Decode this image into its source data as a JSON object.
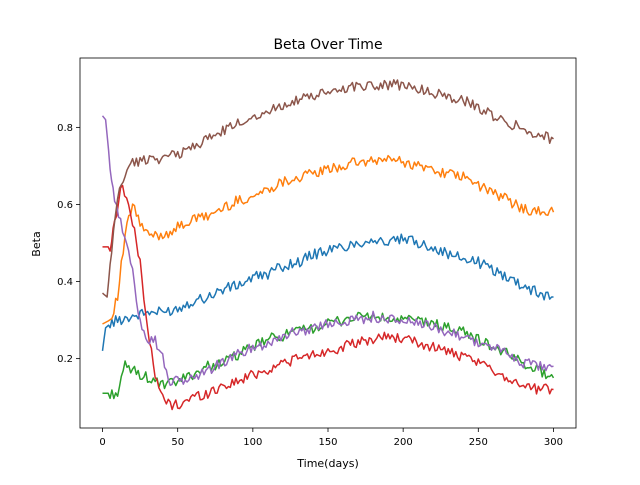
{
  "chart_data": {
    "type": "line",
    "title": "Beta Over Time",
    "xlabel": "Time(days)",
    "ylabel": "Beta",
    "xlim": [
      -15,
      315
    ],
    "ylim": [
      0.02,
      0.98
    ],
    "xticks": [
      0,
      50,
      100,
      150,
      200,
      250,
      300
    ],
    "yticks": [
      0.2,
      0.4,
      0.6,
      0.8
    ],
    "ytick_labels": [
      "0.2",
      "0.4",
      "0.6",
      "0.8"
    ],
    "grid": false,
    "legend": "none",
    "series": [
      {
        "color": "#1f77b4",
        "x": [
          0,
          2,
          5,
          10,
          20,
          30,
          40,
          50,
          60,
          70,
          80,
          90,
          100,
          110,
          120,
          130,
          140,
          150,
          160,
          170,
          180,
          190,
          200,
          210,
          220,
          230,
          240,
          250,
          260,
          270,
          280,
          290,
          300
        ],
        "y": [
          0.22,
          0.28,
          0.29,
          0.3,
          0.31,
          0.32,
          0.32,
          0.33,
          0.35,
          0.36,
          0.38,
          0.39,
          0.41,
          0.42,
          0.44,
          0.45,
          0.47,
          0.48,
          0.49,
          0.5,
          0.51,
          0.5,
          0.51,
          0.5,
          0.49,
          0.47,
          0.46,
          0.45,
          0.43,
          0.41,
          0.39,
          0.37,
          0.36
        ]
      },
      {
        "color": "#ff7f0e",
        "x": [
          0,
          5,
          10,
          15,
          20,
          25,
          30,
          40,
          50,
          60,
          70,
          80,
          90,
          100,
          110,
          120,
          130,
          140,
          150,
          160,
          170,
          180,
          190,
          200,
          210,
          220,
          230,
          240,
          250,
          260,
          270,
          280,
          290,
          300
        ],
        "y": [
          0.29,
          0.3,
          0.36,
          0.52,
          0.6,
          0.55,
          0.52,
          0.52,
          0.54,
          0.56,
          0.57,
          0.59,
          0.61,
          0.62,
          0.64,
          0.66,
          0.67,
          0.68,
          0.69,
          0.7,
          0.71,
          0.71,
          0.72,
          0.71,
          0.7,
          0.69,
          0.68,
          0.67,
          0.65,
          0.63,
          0.61,
          0.59,
          0.58,
          0.58
        ]
      },
      {
        "color": "#2ca02c",
        "x": [
          0,
          5,
          10,
          15,
          20,
          30,
          40,
          50,
          60,
          70,
          80,
          90,
          100,
          110,
          120,
          130,
          140,
          150,
          160,
          170,
          180,
          190,
          200,
          210,
          220,
          230,
          240,
          250,
          260,
          270,
          280,
          290,
          300
        ],
        "y": [
          0.11,
          0.11,
          0.11,
          0.18,
          0.17,
          0.15,
          0.13,
          0.14,
          0.16,
          0.18,
          0.19,
          0.21,
          0.23,
          0.25,
          0.26,
          0.27,
          0.28,
          0.29,
          0.3,
          0.31,
          0.31,
          0.3,
          0.3,
          0.3,
          0.29,
          0.28,
          0.27,
          0.25,
          0.23,
          0.21,
          0.19,
          0.17,
          0.15
        ]
      },
      {
        "color": "#d62728",
        "x": [
          0,
          5,
          8,
          12,
          16,
          20,
          25,
          30,
          35,
          40,
          45,
          50,
          60,
          70,
          80,
          90,
          100,
          110,
          120,
          130,
          140,
          150,
          160,
          170,
          180,
          190,
          200,
          210,
          220,
          230,
          240,
          250,
          260,
          270,
          280,
          290,
          300
        ],
        "y": [
          0.49,
          0.49,
          0.55,
          0.65,
          0.62,
          0.55,
          0.45,
          0.28,
          0.15,
          0.1,
          0.08,
          0.08,
          0.1,
          0.11,
          0.13,
          0.14,
          0.16,
          0.17,
          0.19,
          0.2,
          0.21,
          0.22,
          0.23,
          0.24,
          0.25,
          0.26,
          0.25,
          0.24,
          0.23,
          0.22,
          0.2,
          0.19,
          0.17,
          0.15,
          0.13,
          0.12,
          0.12
        ]
      },
      {
        "color": "#9467bd",
        "x": [
          0,
          2,
          5,
          8,
          12,
          16,
          20,
          25,
          30,
          35,
          40,
          45,
          50,
          60,
          70,
          80,
          90,
          100,
          110,
          120,
          130,
          140,
          150,
          160,
          170,
          180,
          190,
          200,
          210,
          220,
          230,
          240,
          250,
          260,
          270,
          280,
          290,
          300
        ],
        "y": [
          0.83,
          0.82,
          0.7,
          0.62,
          0.55,
          0.5,
          0.42,
          0.3,
          0.25,
          0.25,
          0.2,
          0.14,
          0.14,
          0.15,
          0.17,
          0.19,
          0.21,
          0.23,
          0.24,
          0.26,
          0.27,
          0.28,
          0.29,
          0.3,
          0.3,
          0.31,
          0.3,
          0.3,
          0.29,
          0.28,
          0.27,
          0.26,
          0.24,
          0.23,
          0.21,
          0.19,
          0.18,
          0.18
        ]
      },
      {
        "color": "#8c564b",
        "x": [
          0,
          3,
          6,
          10,
          15,
          20,
          25,
          30,
          40,
          50,
          60,
          70,
          80,
          90,
          100,
          110,
          120,
          130,
          140,
          150,
          160,
          170,
          180,
          190,
          200,
          210,
          220,
          230,
          240,
          250,
          260,
          270,
          280,
          290,
          300
        ],
        "y": [
          0.37,
          0.36,
          0.48,
          0.62,
          0.68,
          0.71,
          0.71,
          0.72,
          0.72,
          0.73,
          0.75,
          0.77,
          0.79,
          0.81,
          0.83,
          0.84,
          0.86,
          0.87,
          0.88,
          0.89,
          0.9,
          0.91,
          0.91,
          0.91,
          0.91,
          0.9,
          0.89,
          0.88,
          0.87,
          0.85,
          0.83,
          0.81,
          0.8,
          0.78,
          0.77
        ]
      }
    ]
  }
}
